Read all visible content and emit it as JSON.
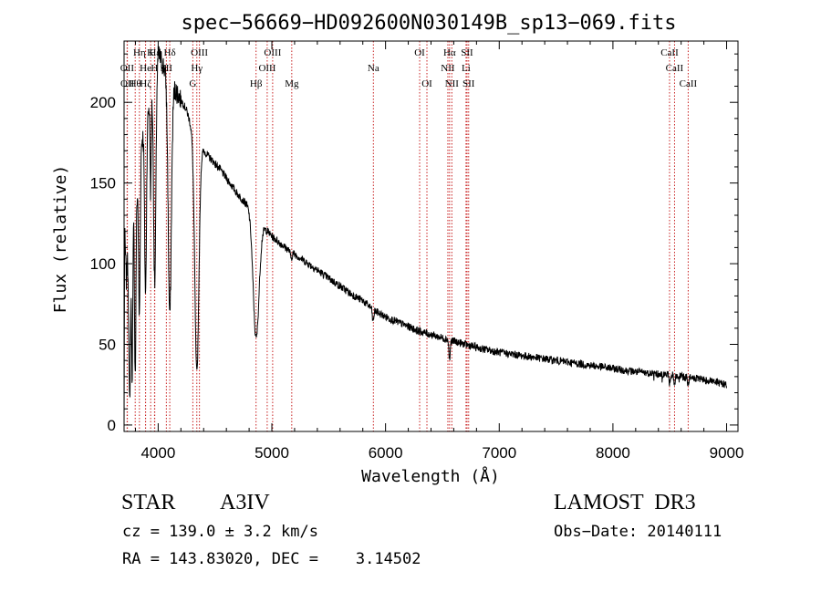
{
  "chart_data": {
    "type": "line",
    "title": "spec−56669−HD092600N030149B_sp13−069.fits",
    "xlabel": "Wavelength (Å)",
    "ylabel": "Flux (relative)",
    "xlim": [
      3700,
      9100
    ],
    "ylim": [
      -4,
      238
    ],
    "x_ticks": [
      4000,
      5000,
      6000,
      7000,
      8000,
      9000
    ],
    "y_ticks": [
      0,
      50,
      100,
      150,
      200
    ],
    "grid": false,
    "series": [
      {
        "name": "spectrum",
        "continuum": [
          [
            3700,
            0
          ],
          [
            3705,
            120
          ],
          [
            3720,
            90
          ],
          [
            3760,
            150
          ],
          [
            3800,
            130
          ],
          [
            3850,
            175
          ],
          [
            3900,
            190
          ],
          [
            3950,
            210
          ],
          [
            4000,
            230
          ],
          [
            4050,
            222
          ],
          [
            4100,
            214
          ],
          [
            4150,
            208
          ],
          [
            4200,
            202
          ],
          [
            4250,
            195
          ],
          [
            4300,
            183
          ],
          [
            4350,
            176
          ],
          [
            4400,
            170
          ],
          [
            4450,
            166
          ],
          [
            4500,
            162
          ],
          [
            4550,
            158
          ],
          [
            4600,
            153
          ],
          [
            4650,
            148
          ],
          [
            4700,
            143
          ],
          [
            4750,
            139
          ],
          [
            4800,
            135
          ],
          [
            4850,
            130
          ],
          [
            4900,
            125
          ],
          [
            4950,
            121
          ],
          [
            5000,
            117
          ],
          [
            5100,
            111
          ],
          [
            5200,
            106
          ],
          [
            5300,
            101
          ],
          [
            5400,
            96
          ],
          [
            5500,
            91
          ],
          [
            5600,
            86
          ],
          [
            5700,
            81
          ],
          [
            5800,
            77
          ],
          [
            5900,
            71
          ],
          [
            6000,
            67
          ],
          [
            6100,
            64
          ],
          [
            6200,
            61
          ],
          [
            6300,
            58
          ],
          [
            6400,
            56
          ],
          [
            6500,
            54
          ],
          [
            6600,
            52
          ],
          [
            6700,
            50
          ],
          [
            6800,
            48
          ],
          [
            7000,
            45
          ],
          [
            7200,
            43
          ],
          [
            7500,
            40
          ],
          [
            7800,
            37
          ],
          [
            8000,
            35
          ],
          [
            8200,
            33
          ],
          [
            8500,
            31
          ],
          [
            8700,
            29
          ],
          [
            8900,
            27
          ],
          [
            9000,
            25
          ]
        ],
        "absorption": [
          [
            3750,
            120,
            8
          ],
          [
            3771,
            110,
            6
          ],
          [
            3798,
            100,
            6
          ],
          [
            3835,
            95,
            7
          ],
          [
            3889,
            105,
            8
          ],
          [
            3934,
            60,
            5
          ],
          [
            3970,
            130,
            10
          ],
          [
            4102,
            145,
            14
          ],
          [
            4340,
            145,
            18
          ],
          [
            4861,
            75,
            26
          ],
          [
            5170,
            4,
            8
          ],
          [
            5890,
            8,
            6
          ],
          [
            6563,
            12,
            6
          ],
          [
            8498,
            5,
            5
          ],
          [
            8542,
            6,
            5
          ],
          [
            8662,
            5,
            5
          ]
        ],
        "noise_amplitude": 2.4
      }
    ],
    "lines": [
      {
        "name": "Hδ",
        "wave": 4102,
        "row": 1
      },
      {
        "name": "Hε",
        "wave": 3970,
        "row": 1
      },
      {
        "name": "K",
        "wave": 3934,
        "row": 1
      },
      {
        "name": "Hη",
        "wave": 3835,
        "row": 1
      },
      {
        "name": "OIII",
        "wave": 4363,
        "row": 1
      },
      {
        "name": "OIII",
        "wave": 5007,
        "row": 1
      },
      {
        "name": "OI",
        "wave": 6300,
        "row": 1
      },
      {
        "name": "Hα",
        "wave": 6563,
        "row": 1
      },
      {
        "name": "SII",
        "wave": 6717,
        "row": 1
      },
      {
        "name": "CaII",
        "wave": 8498,
        "row": 1
      },
      {
        "name": "OII",
        "wave": 3727,
        "row": 2
      },
      {
        "name": "He",
        "wave": 3889,
        "row": 2
      },
      {
        "name": "H",
        "wave": 3968,
        "row": 2
      },
      {
        "name": "SII",
        "wave": 4072,
        "row": 2
      },
      {
        "name": "Hγ",
        "wave": 4340,
        "row": 2
      },
      {
        "name": "OIII",
        "wave": 4959,
        "row": 2
      },
      {
        "name": "Na",
        "wave": 5893,
        "row": 2
      },
      {
        "name": "NII",
        "wave": 6548,
        "row": 2
      },
      {
        "name": "Li",
        "wave": 6708,
        "row": 2
      },
      {
        "name": "CaII",
        "wave": 8542,
        "row": 2
      },
      {
        "name": "OII",
        "wave": 3729,
        "row": 3
      },
      {
        "name": "Hθ",
        "wave": 3798,
        "row": 3
      },
      {
        "name": "Hζ",
        "wave": 3889,
        "row": 3
      },
      {
        "name": "G",
        "wave": 4305,
        "row": 3
      },
      {
        "name": "Hβ",
        "wave": 4861,
        "row": 3
      },
      {
        "name": "Mg",
        "wave": 5175,
        "row": 3
      },
      {
        "name": "OI",
        "wave": 6364,
        "row": 3
      },
      {
        "name": "NII",
        "wave": 6583,
        "row": 3
      },
      {
        "name": "SII",
        "wave": 6731,
        "row": 3
      },
      {
        "name": "CaII",
        "wave": 8662,
        "row": 3
      }
    ]
  },
  "info": {
    "object_class": "STAR",
    "subclass": "A3IV",
    "survey": "LAMOST  DR3",
    "cz": "cz = 139.0 ± 3.2 km/s",
    "obs_date": "Obs−Date: 20140111",
    "radec": "RA = 143.83020, DEC =    3.14502"
  },
  "colors": {
    "line_marker": "#c82020",
    "spectrum": "#000000"
  }
}
